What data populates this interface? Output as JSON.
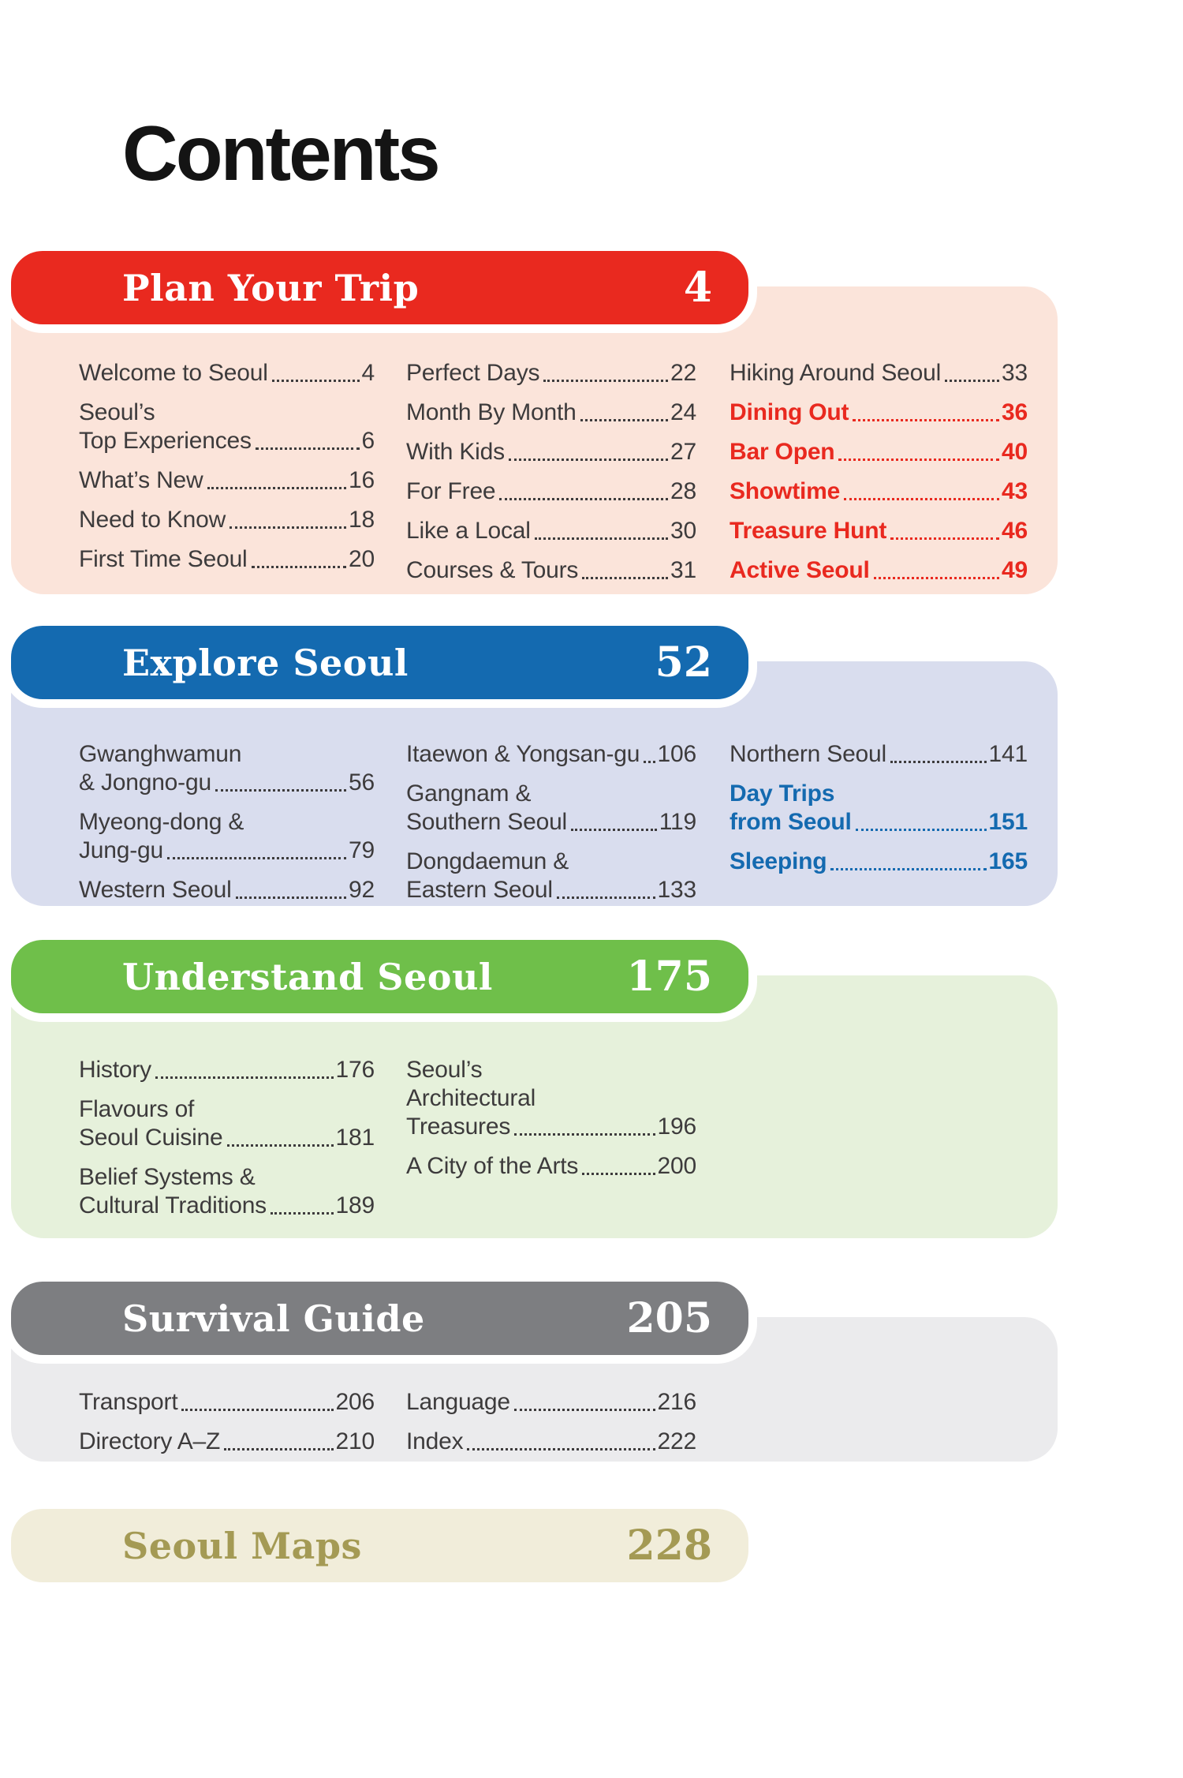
{
  "page": {
    "title": "Contents"
  },
  "sections": [
    {
      "id": "plan-your-trip",
      "title": "Plan Your Trip",
      "page": "4",
      "colors": {
        "bar": "#e9291f",
        "panel": "#fbe4da",
        "title": "#ffffff",
        "accent": "#e9291f"
      },
      "columns": [
        [
          {
            "lines": [
              "Welcome to Seoul"
            ],
            "page": "4"
          },
          {
            "lines": [
              "Seoul’s",
              "Top Experiences"
            ],
            "page": "6"
          },
          {
            "lines": [
              "What’s New"
            ],
            "page": "16"
          },
          {
            "lines": [
              "Need to Know"
            ],
            "page": "18"
          },
          {
            "lines": [
              "First Time Seoul"
            ],
            "page": "20"
          }
        ],
        [
          {
            "lines": [
              "Perfect Days"
            ],
            "page": "22"
          },
          {
            "lines": [
              "Month By Month"
            ],
            "page": "24"
          },
          {
            "lines": [
              "With Kids"
            ],
            "page": "27"
          },
          {
            "lines": [
              "For Free"
            ],
            "page": "28"
          },
          {
            "lines": [
              "Like a Local"
            ],
            "page": "30"
          },
          {
            "lines": [
              "Courses & Tours"
            ],
            "page": "31"
          }
        ],
        [
          {
            "lines": [
              "Hiking Around Seoul"
            ],
            "page": "33"
          },
          {
            "lines": [
              "Dining Out"
            ],
            "page": "36",
            "highlight": true
          },
          {
            "lines": [
              "Bar Open"
            ],
            "page": "40",
            "highlight": true
          },
          {
            "lines": [
              "Showtime"
            ],
            "page": "43",
            "highlight": true
          },
          {
            "lines": [
              "Treasure Hunt"
            ],
            "page": "46",
            "highlight": true
          },
          {
            "lines": [
              "Active Seoul"
            ],
            "page": "49",
            "highlight": true
          }
        ]
      ]
    },
    {
      "id": "explore-seoul",
      "title": "Explore Seoul",
      "page": "52",
      "colors": {
        "bar": "#146ab0",
        "panel": "#d9ddee",
        "title": "#ffffff",
        "accent": "#146ab0"
      },
      "columns": [
        [
          {
            "lines": [
              "Gwanghwamun",
              "& Jongno-gu"
            ],
            "page": "56"
          },
          {
            "lines": [
              "Myeong-dong &",
              "Jung-gu"
            ],
            "page": "79"
          },
          {
            "lines": [
              "Western Seoul"
            ],
            "page": "92"
          }
        ],
        [
          {
            "lines": [
              "Itaewon & Yongsan-gu"
            ],
            "page": "106"
          },
          {
            "lines": [
              "Gangnam &",
              "Southern Seoul"
            ],
            "page": "119"
          },
          {
            "lines": [
              "Dongdaemun &",
              "Eastern Seoul"
            ],
            "page": "133"
          }
        ],
        [
          {
            "lines": [
              "Northern Seoul"
            ],
            "page": "141"
          },
          {
            "lines": [
              "Day Trips",
              "from Seoul"
            ],
            "page": "151",
            "highlight": true
          },
          {
            "lines": [
              "Sleeping"
            ],
            "page": "165",
            "highlight": true
          }
        ]
      ]
    },
    {
      "id": "understand-seoul",
      "title": "Understand Seoul",
      "page": "175",
      "colors": {
        "bar": "#6fbf4a",
        "panel": "#e6f1db",
        "title": "#ffffff",
        "accent": "#6fbf4a"
      },
      "columns": [
        [
          {
            "lines": [
              "History"
            ],
            "page": "176"
          },
          {
            "lines": [
              "Flavours of",
              "Seoul Cuisine"
            ],
            "page": "181"
          },
          {
            "lines": [
              "Belief Systems &",
              "Cultural Traditions"
            ],
            "page": "189"
          }
        ],
        [
          {
            "lines": [
              "Seoul’s",
              "Architectural",
              "Treasures"
            ],
            "page": "196"
          },
          {
            "lines": [
              "A City of the Arts"
            ],
            "page": "200"
          }
        ],
        []
      ]
    },
    {
      "id": "survival-guide",
      "title": "Survival Guide",
      "page": "205",
      "colors": {
        "bar": "#7d7e81",
        "panel": "#ebebed",
        "title": "#ffffff",
        "accent": "#7d7e81"
      },
      "columns": [
        [
          {
            "lines": [
              "Transport"
            ],
            "page": "206"
          },
          {
            "lines": [
              "Directory A–Z"
            ],
            "page": "210"
          }
        ],
        [
          {
            "lines": [
              "Language"
            ],
            "page": "216"
          },
          {
            "lines": [
              "Index"
            ],
            "page": "222"
          }
        ],
        []
      ]
    },
    {
      "id": "seoul-maps",
      "title": "Seoul Maps",
      "page": "228",
      "colors": {
        "bar": "#f1edda",
        "panel": null,
        "title": "#a49a54",
        "accent": "#a49a54"
      },
      "columns": []
    }
  ]
}
